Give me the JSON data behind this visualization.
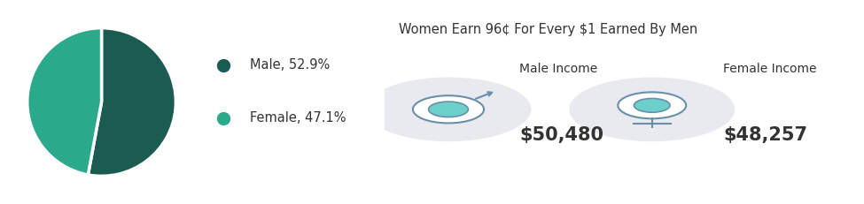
{
  "pie_values": [
    52.9,
    47.1
  ],
  "pie_colors": [
    "#1a5c52",
    "#2aaa8a"
  ],
  "pie_labels": [
    "Male",
    "Female"
  ],
  "pie_pcts": [
    "52.9%",
    "47.1%"
  ],
  "legend_colors": [
    "#1a5c52",
    "#2aaa8a"
  ],
  "title": "Women Earn 96¢ For Every $1 Earned By Men",
  "male_income_label": "Male Income",
  "male_income_value": "$50,480",
  "female_income_label": "Female Income",
  "female_income_value": "$48,257",
  "bg_color": "#ffffff",
  "panel_color": "#edf0f5",
  "text_color": "#333333",
  "icon_bg_color": "#e8eaf0",
  "icon_fill_color": "#6dcfca",
  "icon_stroke_color": "#6a8fa8",
  "legend_dot_size": 10
}
